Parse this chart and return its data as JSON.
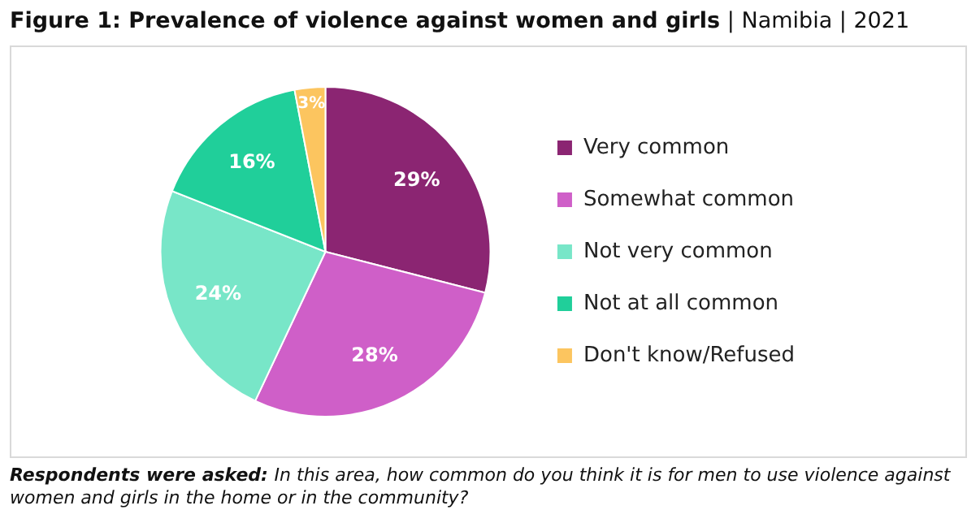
{
  "chart_data": {
    "type": "pie",
    "title": "Figure 1: Prevalence of violence against women and girls",
    "subtitle": "| Namibia | 2021",
    "categories": [
      "Very common",
      "Somewhat common",
      "Not very common",
      "Not at all common",
      "Don't know/Refused"
    ],
    "values": [
      29,
      28,
      24,
      16,
      3
    ],
    "colors": [
      "#8b2572",
      "#cf5fc8",
      "#78e6c8",
      "#20cf9a",
      "#fcc55f"
    ],
    "value_labels": [
      "29%",
      "28%",
      "24%",
      "16%",
      "3%"
    ],
    "legend": "right",
    "annotations": [
      "Respondents were asked:",
      "In this area, how common do you think it is for men to use violence against women and girls in the home or in the community?"
    ]
  }
}
